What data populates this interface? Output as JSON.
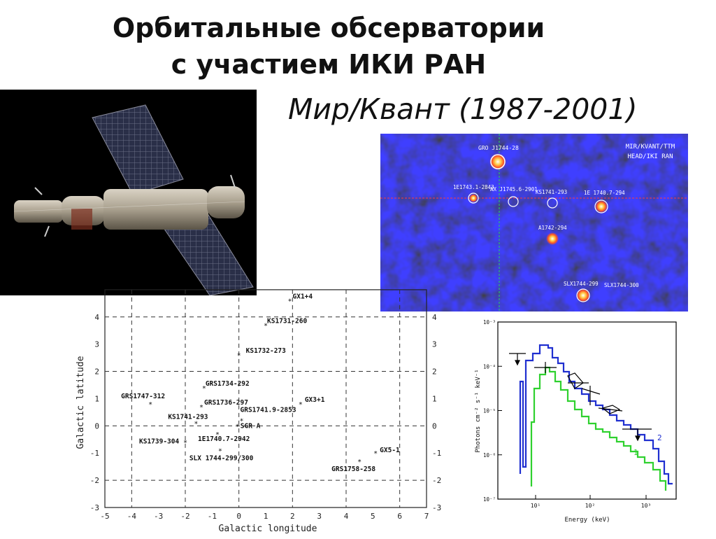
{
  "slide": {
    "title_line1": "Орбитальные обсерватории",
    "title_line2": "с участием ИКИ РАН",
    "subtitle": "Мир/Квант (1987-2001)"
  },
  "sky_map": {
    "header_line1": "MIR/KVANT/TTM",
    "header_line2": "HEAD/IKI RAN",
    "sources": [
      {
        "label": "GRO J1744-28"
      },
      {
        "label": "1E1743.1-2843"
      },
      {
        "label": "AX J1745.6-2901"
      },
      {
        "label": "KS1741-293"
      },
      {
        "label": "1E 1740.7-294"
      },
      {
        "label": "A1742-294"
      },
      {
        "label": "SLX1744-299"
      },
      {
        "label": "SLX1744-300"
      }
    ]
  },
  "galactic_map": {
    "xlabel": "Galactic longitude",
    "ylabel": "Galactic latitude",
    "x_ticks": [
      "-5",
      "-4",
      "-3",
      "-2",
      "-1",
      "0",
      "1",
      "2",
      "3",
      "4",
      "5",
      "6",
      "7"
    ],
    "y_ticks": [
      "-3",
      "-2",
      "-1",
      "0",
      "1",
      "2",
      "3",
      "4"
    ],
    "sources": [
      {
        "label": "GX1+4"
      },
      {
        "label": "KS1731-260"
      },
      {
        "label": "KS1732-273"
      },
      {
        "label": "GRS1734-292"
      },
      {
        "label": "GRS1747-312"
      },
      {
        "label": "GRS1736-297"
      },
      {
        "label": "GX3+1"
      },
      {
        "label": "GRS1741.9-2853"
      },
      {
        "label": "KS1741-293"
      },
      {
        "label": "SGR A"
      },
      {
        "label": "1E1740.7-2942"
      },
      {
        "label": "KS1739-304"
      },
      {
        "label": "SLX 1744-299/300"
      },
      {
        "label": "GX5-1"
      },
      {
        "label": "GRS1758-258"
      }
    ]
  },
  "spectrum": {
    "xlabel": "Energy (keV)",
    "ylabel": "Photons cm⁻² s⁻¹ keV⁻¹",
    "y_ticks": [
      "10⁻³",
      "10⁻⁴",
      "10⁻⁵",
      "10⁻⁶",
      "10⁻⁷"
    ],
    "x_ticks": [
      "10¹",
      "10²",
      "10³"
    ],
    "series": [
      {
        "name": "1",
        "color": "#2fd12f"
      },
      {
        "name": "2",
        "color": "#1f2fd0"
      }
    ]
  }
}
